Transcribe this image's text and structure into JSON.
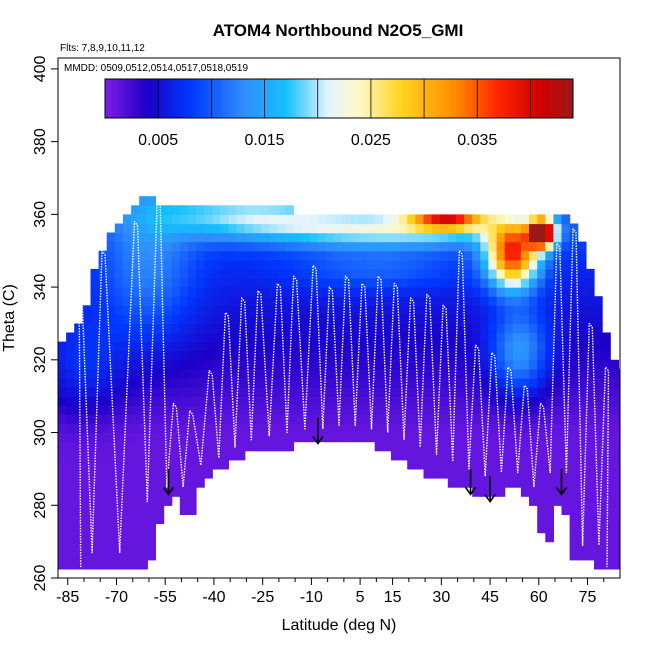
{
  "chart_data": {
    "type": "heatmap",
    "title": "ATOM4 Northbound N2O5_GMI",
    "flights_label": "Flts: 7,8,9,10,11,12",
    "dates_label": "MMDD: 0509,0512,0514,0517,0518,0519",
    "xlabel": "Latitude (deg N)",
    "ylabel": "Theta (C)",
    "xlim": [
      -88,
      85
    ],
    "ylim": [
      260,
      403
    ],
    "x_ticks": [
      -85,
      -70,
      -55,
      -40,
      -25,
      -10,
      5,
      15,
      30,
      45,
      60,
      75
    ],
    "x_tick_labels": [
      "-85",
      "-70",
      "-55",
      "-40",
      "-25",
      "-10",
      "5",
      "15",
      "30",
      "45",
      "60",
      "75"
    ],
    "y_ticks": [
      260,
      280,
      300,
      320,
      340,
      360,
      380,
      400
    ],
    "y_tick_labels": [
      "260",
      "280",
      "300",
      "320",
      "340",
      "360",
      "380",
      "400"
    ],
    "colorbar": {
      "min": 0.0,
      "max": 0.044,
      "tick_values": [
        0.005,
        0.015,
        0.025,
        0.035
      ],
      "tick_labels": [
        "0.005",
        "0.015",
        "0.025",
        "0.035"
      ],
      "stops": [
        {
          "v": 0.0,
          "color": "#7e1ee6"
        },
        {
          "v": 0.004,
          "color": "#1c00c8"
        },
        {
          "v": 0.008,
          "color": "#0038ff"
        },
        {
          "v": 0.013,
          "color": "#2f8cff"
        },
        {
          "v": 0.017,
          "color": "#15c0ff"
        },
        {
          "v": 0.021,
          "color": "#e4f4ff"
        },
        {
          "v": 0.024,
          "color": "#fff8c4"
        },
        {
          "v": 0.028,
          "color": "#ffd21c"
        },
        {
          "v": 0.033,
          "color": "#ff8a00"
        },
        {
          "v": 0.037,
          "color": "#ff2400"
        },
        {
          "v": 0.041,
          "color": "#d00000"
        },
        {
          "v": 0.044,
          "color": "#9a1a1a"
        }
      ]
    },
    "field": {
      "columns": [
        {
          "lat": -86,
          "bottom": 263,
          "top": 326
        },
        {
          "lat": -80,
          "bottom": 263,
          "top": 333
        },
        {
          "lat": -75,
          "bottom": 263,
          "top": 350
        },
        {
          "lat": -70,
          "bottom": 263,
          "top": 358
        },
        {
          "lat": -65,
          "bottom": 263,
          "top": 362
        },
        {
          "lat": -60,
          "bottom": 263,
          "top": 365
        },
        {
          "lat": -56,
          "bottom": 277,
          "top": 363
        },
        {
          "lat": -52,
          "bottom": 282,
          "top": 363
        },
        {
          "lat": -48,
          "bottom": 275,
          "top": 363
        },
        {
          "lat": -44,
          "bottom": 287,
          "top": 363
        },
        {
          "lat": -38,
          "bottom": 290,
          "top": 362
        },
        {
          "lat": -30,
          "bottom": 294,
          "top": 362
        },
        {
          "lat": -22,
          "bottom": 294,
          "top": 362
        },
        {
          "lat": -14,
          "bottom": 297,
          "top": 361
        },
        {
          "lat": -6,
          "bottom": 298,
          "top": 361
        },
        {
          "lat": 2,
          "bottom": 298,
          "top": 361
        },
        {
          "lat": 10,
          "bottom": 296,
          "top": 361
        },
        {
          "lat": 18,
          "bottom": 292,
          "top": 361
        },
        {
          "lat": 26,
          "bottom": 288,
          "top": 361
        },
        {
          "lat": 34,
          "bottom": 286,
          "top": 361
        },
        {
          "lat": 40,
          "bottom": 284,
          "top": 361
        },
        {
          "lat": 46,
          "bottom": 282,
          "top": 361
        },
        {
          "lat": 52,
          "bottom": 285,
          "top": 361
        },
        {
          "lat": 58,
          "bottom": 280,
          "top": 361
        },
        {
          "lat": 63,
          "bottom": 268,
          "top": 361
        },
        {
          "lat": 67,
          "bottom": 285,
          "top": 361
        },
        {
          "lat": 71,
          "bottom": 265,
          "top": 358
        },
        {
          "lat": 76,
          "bottom": 265,
          "top": 345
        },
        {
          "lat": 80,
          "bottom": 262,
          "top": 330
        },
        {
          "lat": 84,
          "bottom": 262,
          "top": 318
        }
      ],
      "blobs": [
        {
          "lat": -60,
          "theta": 345,
          "rlat": 14,
          "rtheta": 22,
          "amp": 0.006
        },
        {
          "lat": -80,
          "theta": 318,
          "rlat": 12,
          "rtheta": 14,
          "amp": 0.004
        },
        {
          "lat": -30,
          "theta": 360,
          "rlat": 30,
          "rtheta": 6,
          "amp": 0.01
        },
        {
          "lat": 15,
          "theta": 356,
          "rlat": 40,
          "rtheta": 5,
          "amp": 0.013
        },
        {
          "lat": 32,
          "theta": 359,
          "rlat": 12,
          "rtheta": 3,
          "amp": 0.024
        },
        {
          "lat": 52,
          "theta": 349,
          "rlat": 8,
          "rtheta": 9,
          "amp": 0.03
        },
        {
          "lat": 61,
          "theta": 355,
          "rlat": 4,
          "rtheta": 4,
          "amp": 0.04
        },
        {
          "lat": 54,
          "theta": 322,
          "rlat": 9,
          "rtheta": 12,
          "amp": 0.01
        },
        {
          "lat": 10,
          "theta": 345,
          "rlat": 25,
          "rtheta": 6,
          "amp": 0.004
        }
      ]
    },
    "profile_peaks": [
      {
        "lat": -81,
        "top": 337,
        "bottom": 263
      },
      {
        "lat": -74,
        "top": 350,
        "bottom": 263
      },
      {
        "lat": -64,
        "top": 358,
        "bottom": 263
      },
      {
        "lat": -57,
        "top": 364,
        "bottom": 277
      },
      {
        "lat": -52,
        "top": 308,
        "bottom": 281
      },
      {
        "lat": -47,
        "top": 306,
        "bottom": 276
      },
      {
        "lat": -41,
        "top": 317,
        "bottom": 287
      },
      {
        "lat": -36,
        "top": 333,
        "bottom": 289
      },
      {
        "lat": -31,
        "top": 337,
        "bottom": 292
      },
      {
        "lat": -26,
        "top": 339,
        "bottom": 294
      },
      {
        "lat": -20,
        "top": 341,
        "bottom": 295
      },
      {
        "lat": -15,
        "top": 343,
        "bottom": 296
      },
      {
        "lat": -9,
        "top": 346,
        "bottom": 297
      },
      {
        "lat": -4,
        "top": 340,
        "bottom": 297
      },
      {
        "lat": 1,
        "top": 343,
        "bottom": 298
      },
      {
        "lat": 6,
        "top": 341,
        "bottom": 297
      },
      {
        "lat": 11,
        "top": 343,
        "bottom": 296
      },
      {
        "lat": 16,
        "top": 341,
        "bottom": 294
      },
      {
        "lat": 21,
        "top": 337,
        "bottom": 292
      },
      {
        "lat": 26,
        "top": 338,
        "bottom": 290
      },
      {
        "lat": 31,
        "top": 335,
        "bottom": 288
      },
      {
        "lat": 36,
        "top": 350,
        "bottom": 286
      },
      {
        "lat": 41,
        "top": 324,
        "bottom": 284
      },
      {
        "lat": 46,
        "top": 322,
        "bottom": 283
      },
      {
        "lat": 51,
        "top": 318,
        "bottom": 285
      },
      {
        "lat": 56,
        "top": 313,
        "bottom": 281
      },
      {
        "lat": 61,
        "top": 308,
        "bottom": 268
      },
      {
        "lat": 66,
        "top": 352,
        "bottom": 285
      },
      {
        "lat": 71,
        "top": 356,
        "bottom": 265
      },
      {
        "lat": 76,
        "top": 330,
        "bottom": 265
      },
      {
        "lat": 81,
        "top": 318,
        "bottom": 263
      }
    ],
    "arrows": [
      {
        "lat": -54,
        "theta_top": 290,
        "theta_bottom": 283
      },
      {
        "lat": -8,
        "theta_top": 304,
        "theta_bottom": 297
      },
      {
        "lat": 39,
        "theta_top": 290,
        "theta_bottom": 283
      },
      {
        "lat": 45,
        "theta_top": 288,
        "theta_bottom": 281
      },
      {
        "lat": 67,
        "theta_top": 290,
        "theta_bottom": 283
      }
    ]
  }
}
